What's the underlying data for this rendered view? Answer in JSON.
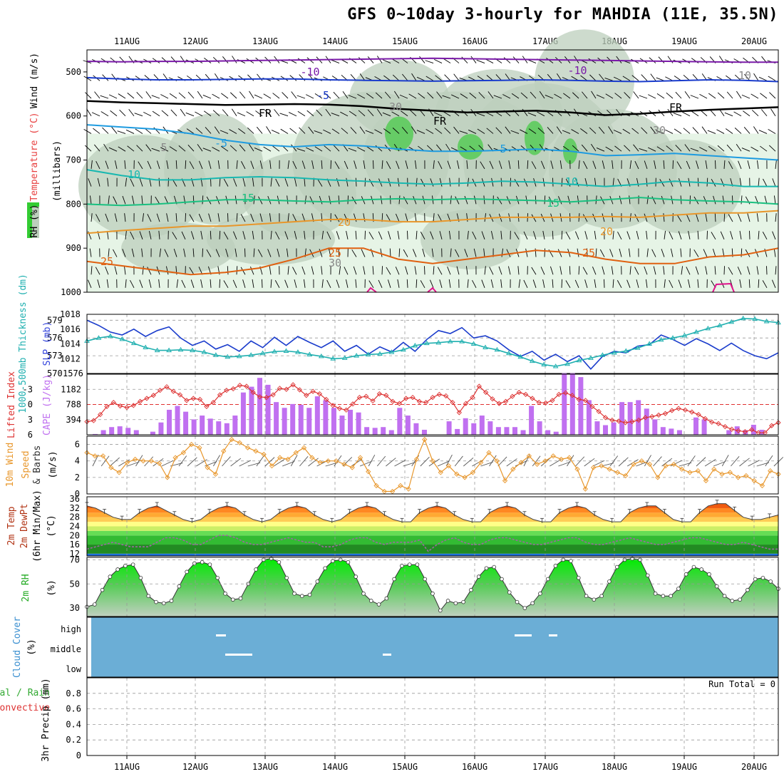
{
  "title": "GFS 0~10day 3-hourly for MAHDIA (11E, 35.5N)",
  "dates": [
    "11AUG",
    "12AUG",
    "13AUG",
    "14AUG",
    "15AUG",
    "16AUG",
    "17AUG",
    "18AUG",
    "19AUG",
    "20AUG"
  ],
  "colors": {
    "thickness": "#20b0b0",
    "slp": "#1a3ccc",
    "li": "#dd3333",
    "cape": "#c070f0",
    "wind": "#e8962a",
    "rh": "#22cc22",
    "cloud": "#6baed6",
    "temp": "#e25f10"
  },
  "chart_data": [
    {
      "type": "heatmap",
      "id": "upper-air",
      "ylabel_parts": [
        "RH (%)",
        "Temperature (°C)",
        "Wind (m/s)",
        "(millibars)"
      ],
      "yticks": [
        500,
        600,
        700,
        800,
        900,
        1000
      ],
      "ylim": [
        450,
        1000
      ],
      "contour_labels": [
        "-10",
        "-10",
        "-5",
        "FR",
        "FR",
        "FR",
        "-5",
        "5",
        "5",
        "10",
        "10",
        "15",
        "15",
        "20",
        "20",
        "25",
        "25",
        "25",
        "10",
        "30",
        "30",
        "30"
      ],
      "isotherms": [
        {
          "label": "-10",
          "color": "#7a1aa8",
          "p": [
            476,
            477,
            476,
            476,
            475,
            474,
            473,
            472,
            471,
            470,
            469,
            470,
            471,
            472,
            473,
            474,
            475,
            476,
            477,
            478,
            478
          ]
        },
        {
          "label": "-5",
          "color": "#1a3ccc",
          "p": [
            513,
            516,
            518,
            518,
            517,
            516,
            516,
            518,
            519,
            520,
            521,
            520,
            519,
            518,
            519,
            521,
            522,
            520,
            518,
            519,
            522
          ]
        },
        {
          "label": "FR",
          "color": "#000000",
          "p": [
            566,
            569,
            571,
            573,
            575,
            574,
            573,
            574,
            578,
            584,
            588,
            592,
            590,
            588,
            592,
            598,
            595,
            590,
            586,
            583,
            580
          ]
        },
        {
          "label": "5",
          "color": "#1e9be0",
          "p": [
            620,
            625,
            630,
            640,
            655,
            665,
            670,
            665,
            668,
            675,
            680,
            680,
            678,
            675,
            680,
            690,
            688,
            685,
            690,
            695,
            700
          ]
        },
        {
          "label": "10",
          "color": "#18b8b0",
          "p": [
            722,
            735,
            745,
            745,
            740,
            738,
            740,
            745,
            748,
            752,
            755,
            752,
            748,
            750,
            755,
            760,
            755,
            748,
            752,
            760,
            760
          ]
        },
        {
          "label": "15",
          "color": "#1ac080",
          "p": [
            800,
            803,
            800,
            795,
            790,
            790,
            793,
            795,
            790,
            788,
            790,
            788,
            790,
            792,
            795,
            790,
            785,
            790,
            793,
            795,
            800
          ]
        },
        {
          "label": "20",
          "color": "#e8962a",
          "p": [
            866,
            860,
            855,
            850,
            850,
            845,
            840,
            835,
            835,
            840,
            840,
            835,
            830,
            830,
            830,
            828,
            830,
            825,
            820,
            820,
            815
          ]
        },
        {
          "label": "25",
          "color": "#e06010",
          "p": [
            930,
            940,
            950,
            960,
            955,
            945,
            925,
            900,
            900,
            925,
            935,
            925,
            915,
            905,
            910,
            925,
            935,
            935,
            920,
            915,
            900
          ]
        }
      ]
    },
    {
      "type": "line",
      "id": "thickness-slp",
      "ylabel": "1000-500mb Thickness (dm)",
      "ylabel2": "SLP (mb)",
      "yticks_left": [
        570,
        573,
        576,
        579
      ],
      "yticks_right": [
        1012,
        1014,
        1016,
        1018
      ],
      "ylim_left": [
        570,
        580
      ],
      "ylim_right": [
        1010,
        1018
      ],
      "series": [
        {
          "name": "SLP (mb)",
          "axis": "right",
          "values": [
            1017.2,
            1016.5,
            1015.6,
            1015.2,
            1016.0,
            1015.0,
            1015.8,
            1016.3,
            1014.8,
            1013.8,
            1014.4,
            1013.3,
            1013.9,
            1013.0,
            1014.4,
            1013.5,
            1014.9,
            1013.8,
            1015.0,
            1014.2,
            1013.5,
            1014.4,
            1013.0,
            1013.8,
            1012.6,
            1013.6,
            1012.9,
            1014.2,
            1013.0,
            1014.6,
            1015.8,
            1015.4,
            1016.2,
            1014.8,
            1015.1,
            1014.4,
            1013.2,
            1012.3,
            1013.0,
            1011.8,
            1012.6,
            1011.6,
            1012.4,
            1010.6,
            1012.3,
            1013.0,
            1012.8,
            1013.7,
            1013.9,
            1015.2,
            1014.6,
            1013.8,
            1014.7,
            1014.0,
            1013.1,
            1014.1,
            1013.1,
            1012.4,
            1012.0,
            1012.8
          ]
        },
        {
          "name": "1000-500mb Thickness (dm)",
          "axis": "left",
          "values": [
            575.5,
            576.0,
            576.3,
            575.8,
            575.1,
            574.4,
            573.9,
            573.9,
            574.0,
            573.9,
            573.6,
            573.1,
            572.8,
            572.9,
            573.1,
            573.4,
            573.7,
            573.8,
            573.6,
            573.2,
            572.9,
            572.5,
            572.6,
            573.0,
            573.2,
            573.3,
            573.6,
            574.0,
            574.7,
            575.1,
            575.2,
            575.4,
            575.4,
            575.0,
            574.4,
            574.0,
            573.4,
            572.8,
            572.1,
            571.5,
            571.2,
            571.6,
            572.2,
            572.6,
            573.1,
            573.5,
            573.8,
            574.3,
            575.0,
            575.7,
            576.0,
            576.4,
            577.0,
            577.6,
            578.1,
            578.7,
            579.3,
            579.2,
            578.8,
            578.6
          ]
        }
      ]
    },
    {
      "type": "bar",
      "id": "cape-li",
      "ylabel": "Lifted Index",
      "ylabel2": "CAPE (J/kg)",
      "yticks_left": [
        "-3",
        "0",
        "3",
        "6"
      ],
      "yticks_right": [
        "1182",
        "788",
        "394"
      ],
      "ylim_cape": [
        0,
        1576
      ],
      "ylim_li": [
        -6,
        6
      ],
      "series": [
        {
          "name": "CAPE (J/kg)",
          "values": [
            0,
            20,
            120,
            200,
            220,
            180,
            120,
            0,
            80,
            320,
            650,
            750,
            600,
            400,
            500,
            420,
            350,
            300,
            500,
            1100,
            1250,
            1480,
            1300,
            850,
            700,
            800,
            780,
            700,
            1000,
            900,
            700,
            500,
            650,
            580,
            200,
            180,
            200,
            120,
            700,
            500,
            300,
            130,
            0,
            0,
            350,
            150,
            430,
            300,
            500,
            350,
            200,
            200,
            200,
            120,
            750,
            350,
            120,
            80,
            1600,
            1600,
            1500,
            900,
            350,
            250,
            320,
            850,
            850,
            900,
            680,
            400,
            200,
            160,
            120,
            0,
            450,
            400,
            0,
            0,
            120,
            220,
            120,
            260,
            130,
            0,
            0
          ]
        },
        {
          "name": "Lifted Index",
          "values": [
            3.4,
            3.2,
            2.0,
            0.4,
            -0.4,
            0.3,
            0.6,
            0.2,
            -0.6,
            -1.2,
            -1.8,
            -2.8,
            -3.5,
            -2.6,
            -1.9,
            -0.8,
            -1.2,
            -1.0,
            0.4,
            -0.4,
            -1.9,
            -2.8,
            -3.1,
            -3.8,
            -3.6,
            -2.4,
            -1.5,
            -1.4,
            -1.9,
            -3.2,
            -3.0,
            -3.9,
            -2.9,
            -1.8,
            -2.6,
            -2.1,
            -1.0,
            0.2,
            0.8,
            1.1,
            -0.1,
            -1.4,
            -1.6,
            -0.7,
            -2.1,
            -1.8,
            -0.6,
            -0.2,
            -1.2,
            -1.4,
            -0.6,
            -0.4,
            -1.4,
            -2.0,
            -1.7,
            -0.4,
            1.6,
            -0.2,
            -1.4,
            -3.6,
            -2.4,
            -1.1,
            -0.2,
            -0.6,
            -1.6,
            -2.4,
            -2.0,
            -1.2,
            -0.4,
            -0.3,
            -0.8,
            -2.0,
            -2.3,
            -1.8,
            -1.0,
            -0.8,
            0.4,
            1.4,
            2.6,
            3.1,
            3.3,
            3.6,
            3.4,
            3.1,
            2.6,
            2.4,
            2.1,
            1.8,
            1.2,
            0.8,
            1.1,
            1.5,
            2.0,
            2.8,
            3.5,
            3.8,
            4.4,
            4.9,
            5.2,
            5.4,
            5.0,
            5.6,
            5.6,
            4.2,
            3.6
          ]
        }
      ]
    },
    {
      "type": "line",
      "id": "wind10m",
      "ylabel": "10m Wind Speed & Barbs",
      "ylabel2": "(m/s)",
      "yticks": [
        0,
        2,
        4,
        6
      ],
      "ylim": [
        0,
        7
      ],
      "series": [
        {
          "name": "10m Wind Speed",
          "values": [
            5.0,
            4.6,
            4.6,
            3.2,
            2.6,
            3.8,
            4.2,
            4.0,
            4.0,
            3.7,
            2.0,
            4.4,
            5.0,
            6.0,
            5.6,
            3.2,
            2.4,
            5.2,
            6.6,
            6.2,
            5.6,
            5.2,
            4.8,
            3.4,
            4.4,
            4.2,
            5.0,
            5.6,
            4.4,
            3.8,
            4.0,
            4.0,
            3.6,
            3.2,
            4.4,
            2.7,
            1.0,
            0.3,
            0.3,
            1.0,
            0.6,
            4.2,
            6.6,
            4.0,
            2.6,
            3.4,
            2.4,
            2.0,
            2.6,
            3.8,
            5.0,
            4.0,
            1.6,
            3.0,
            3.8,
            4.6,
            3.6,
            4.0,
            4.6,
            4.2,
            4.4,
            3.0,
            0.6,
            3.2,
            3.4,
            3.0,
            2.6,
            2.2,
            3.6,
            4.0,
            3.6,
            2.0,
            3.4,
            3.6,
            3.0,
            2.6,
            2.8,
            1.6,
            3.0,
            2.4,
            2.6,
            2.0,
            2.2,
            1.6,
            1.0,
            2.8,
            2.4
          ]
        }
      ]
    },
    {
      "type": "area",
      "id": "temp2m",
      "ylabel": "2m Temp",
      "ylabel2": "2m DewPt",
      "ylabel3": "(6hr Min/Max) (°C)",
      "yticks": [
        12,
        16,
        20,
        24,
        28,
        32,
        36
      ],
      "ylim": [
        11,
        37
      ],
      "series": [
        {
          "name": "2m Temp",
          "values": [
            33,
            32,
            30,
            28,
            27,
            27,
            30,
            32,
            33,
            31,
            29,
            27,
            26,
            27,
            30,
            32,
            33,
            32,
            29,
            27,
            26,
            27,
            30,
            32,
            33,
            32,
            29,
            27,
            26,
            27,
            30,
            32,
            33,
            32,
            29,
            27,
            26,
            26,
            30,
            32,
            33,
            32,
            29,
            27,
            26,
            26,
            30,
            32,
            33,
            32,
            29,
            27,
            26,
            26,
            30,
            32,
            33,
            32,
            29,
            27,
            26,
            26,
            30,
            32,
            33,
            33,
            30,
            27,
            26,
            26,
            30,
            33,
            34,
            34,
            31,
            28,
            27,
            27,
            28,
            29
          ]
        },
        {
          "name": "2m DewPt",
          "values": [
            14,
            15,
            16,
            17,
            16,
            15,
            15,
            15,
            17,
            19,
            19,
            18,
            16,
            16,
            18,
            20,
            20,
            19,
            17,
            16,
            16,
            17,
            18,
            19,
            18,
            17,
            17,
            15,
            15,
            16,
            18,
            19,
            19,
            17,
            16,
            17,
            17,
            17,
            18,
            13,
            16,
            18,
            19,
            17,
            16,
            16,
            18,
            19,
            19,
            18,
            17,
            16,
            16,
            17,
            18,
            19,
            19,
            17,
            16,
            16,
            17,
            18,
            19,
            18,
            17,
            16,
            16,
            17,
            18,
            19,
            19,
            18,
            17,
            16,
            16,
            17,
            16,
            15,
            14,
            14
          ]
        }
      ]
    },
    {
      "type": "area",
      "id": "rh2m",
      "ylabel": "2m RH",
      "ylabel2": "(%)",
      "yticks": [
        30,
        50,
        70
      ],
      "ylim": [
        23,
        72
      ],
      "series": [
        {
          "name": "2m RH",
          "values": [
            31,
            33,
            45,
            56,
            62,
            65,
            66,
            55,
            40,
            35,
            34,
            36,
            48,
            60,
            67,
            68,
            66,
            55,
            42,
            37,
            38,
            50,
            62,
            70,
            71,
            68,
            55,
            42,
            40,
            41,
            52,
            63,
            69,
            70,
            68,
            56,
            42,
            36,
            33,
            38,
            54,
            65,
            66,
            66,
            54,
            42,
            28,
            36,
            34,
            35,
            45,
            56,
            63,
            64,
            54,
            43,
            35,
            30,
            34,
            42,
            54,
            65,
            70,
            69,
            55,
            40,
            37,
            40,
            52,
            64,
            70,
            71,
            70,
            57,
            42,
            40,
            40,
            46,
            58,
            64,
            62,
            58,
            48,
            40,
            36,
            37,
            45,
            54,
            55,
            52,
            46
          ]
        }
      ]
    },
    {
      "type": "heatmap",
      "id": "cloud",
      "ylabel": "Cloud Cover",
      "ylabel2": "(%)",
      "yticks": [
        "high",
        "middle",
        "low"
      ]
    },
    {
      "type": "bar",
      "id": "precip",
      "ylabel": "3hr Precip (mm)",
      "series_labels": [
        "Total / Rain",
        "Convective"
      ],
      "yticks": [
        "0",
        "0.2",
        "0.4",
        "0.6",
        "0.8"
      ],
      "ylim": [
        0,
        1
      ],
      "run_total": "Run Total = 0",
      "values": []
    }
  ]
}
